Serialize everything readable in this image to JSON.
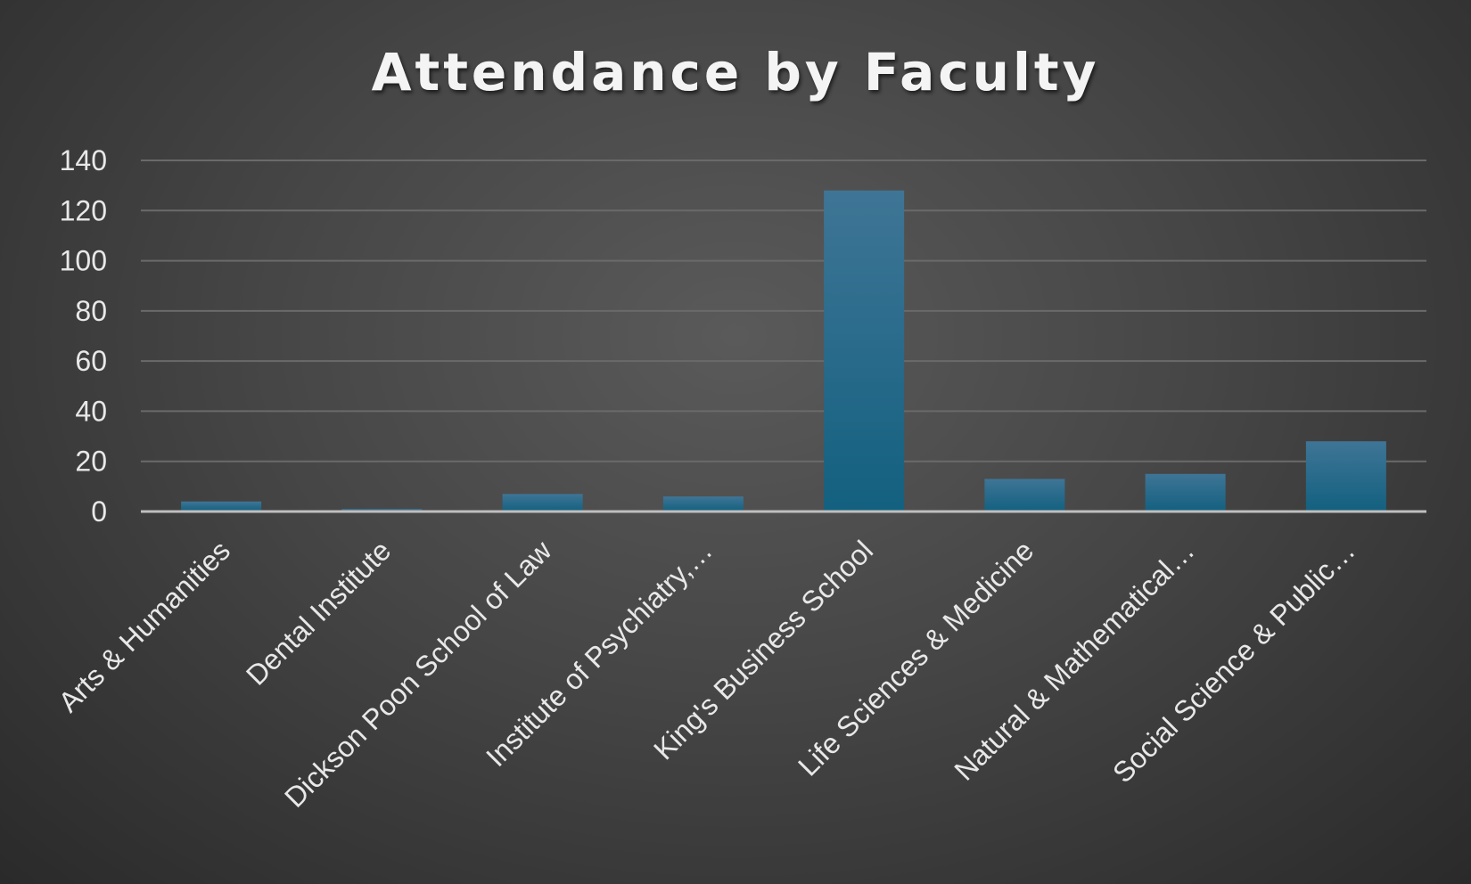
{
  "chart_data": {
    "type": "bar",
    "title": "Attendance by Faculty",
    "xlabel": "",
    "ylabel": "",
    "ylim": [
      0,
      140
    ],
    "yticks": [
      0,
      20,
      40,
      60,
      80,
      100,
      120,
      140
    ],
    "grid": true,
    "legend": "none",
    "categories": [
      "Arts & Humanities",
      "Dental Institute",
      "Dickson Poon School of Law",
      "Institute of Psychiatry,…",
      "King's Business School",
      "Life Sciences & Medicine",
      "Natural & Mathematical…",
      "Social Science & Public…"
    ],
    "values": [
      4,
      1,
      7,
      6,
      128,
      13,
      15,
      28
    ],
    "colors": {
      "bar_top": "#3f7596",
      "bar_bottom": "#13607f",
      "grid": "#6a6a6a",
      "axis": "#bfbfbf",
      "text": "#e8e8e8",
      "title": "#f4f4f4"
    }
  }
}
